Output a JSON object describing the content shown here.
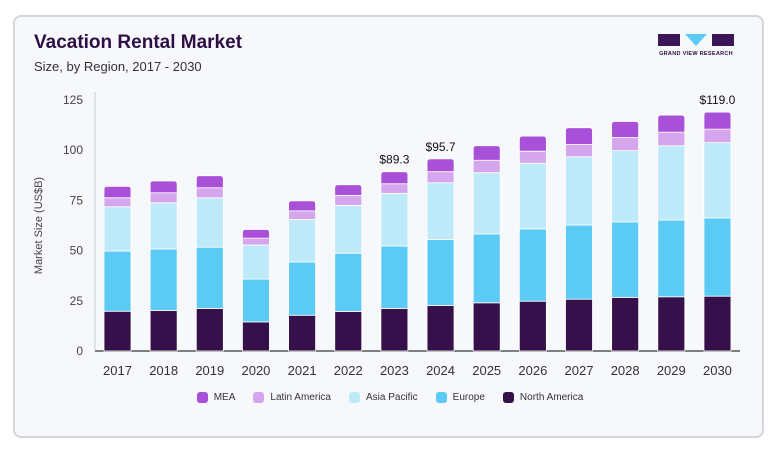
{
  "chart_data": {
    "type": "bar",
    "stacked": true,
    "title": "Vacation Rental Market",
    "subtitle": "Size, by Region, 2017 - 2030",
    "xlabel": "",
    "ylabel": "Market Size (US$B)",
    "ylim": [
      0,
      125
    ],
    "yticks": [
      0,
      25,
      50,
      75,
      100,
      125
    ],
    "grid": false,
    "legend_position": "bottom",
    "categories": [
      "2017",
      "2018",
      "2019",
      "2020",
      "2021",
      "2022",
      "2023",
      "2024",
      "2025",
      "2026",
      "2027",
      "2028",
      "2029",
      "2030"
    ],
    "series": [
      {
        "name": "North America",
        "color": "#36104a",
        "values": [
          19.8,
          20.2,
          21.2,
          14.5,
          17.8,
          19.7,
          21.2,
          22.7,
          24.0,
          24.8,
          25.8,
          26.7,
          27.0,
          27.3
        ]
      },
      {
        "name": "Europe",
        "color": "#5bcbf5",
        "values": [
          30.0,
          30.6,
          30.5,
          21.3,
          26.5,
          29.0,
          31.1,
          32.8,
          34.3,
          36.0,
          36.9,
          37.6,
          38.2,
          39.0
        ]
      },
      {
        "name": "Asia Pacific",
        "color": "#bde9f9",
        "values": [
          22.0,
          23.0,
          24.6,
          17.0,
          21.2,
          23.8,
          26.2,
          28.3,
          30.5,
          32.7,
          34.0,
          35.5,
          37.0,
          37.5
        ]
      },
      {
        "name": "Latin America",
        "color": "#d5a6ed",
        "values": [
          4.5,
          5.0,
          5.0,
          3.4,
          4.3,
          5.0,
          4.8,
          5.5,
          6.2,
          6.0,
          6.1,
          6.5,
          6.8,
          6.7
        ]
      },
      {
        "name": "MEA",
        "color": "#a851d8",
        "values": [
          5.7,
          5.9,
          6.0,
          4.3,
          5.0,
          5.3,
          6.0,
          6.4,
          7.2,
          7.5,
          8.4,
          8.0,
          8.5,
          8.5
        ]
      }
    ],
    "annotations": [
      {
        "category": "2023",
        "text": "$89.3"
      },
      {
        "category": "2024",
        "text": "$95.7"
      },
      {
        "category": "2030",
        "text": "$119.0"
      }
    ],
    "legend_order": [
      "MEA",
      "Latin America",
      "Asia Pacific",
      "Europe",
      "North America"
    ]
  },
  "brand": {
    "logo_text": "GRAND VIEW RESEARCH"
  }
}
